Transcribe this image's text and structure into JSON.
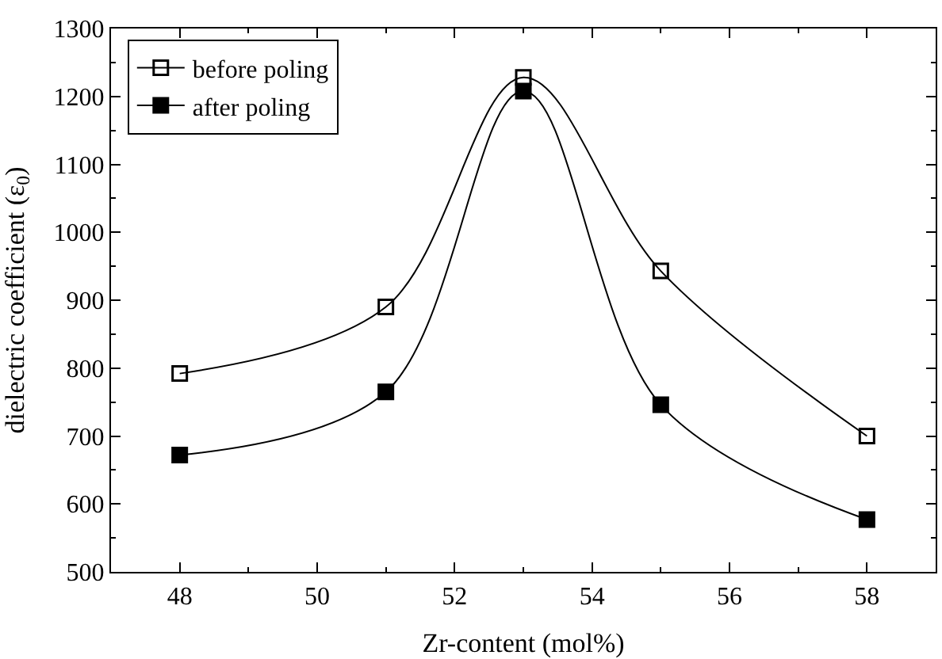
{
  "chart_data": {
    "type": "line",
    "xlabel": "Zr-content (mol%)",
    "ylabel": "dielectric coefficient (ε$_{0}$)",
    "x": [
      48,
      51,
      53,
      55,
      58
    ],
    "series": [
      {
        "name": "before poling",
        "color": "#000000",
        "marker": "square-open",
        "values": [
          792,
          890,
          1228,
          943,
          700
        ]
      },
      {
        "name": "after poling",
        "color": "#000000",
        "marker": "square",
        "values": [
          672,
          765,
          1208,
          746,
          577
        ]
      }
    ],
    "xlim": [
      47,
      59
    ],
    "xticks": [
      48,
      50,
      52,
      54,
      56,
      58
    ],
    "ylim": [
      500,
      1300
    ],
    "yticks": [
      500,
      600,
      700,
      800,
      900,
      1000,
      1100,
      1200,
      1300
    ],
    "legend": "top left"
  }
}
